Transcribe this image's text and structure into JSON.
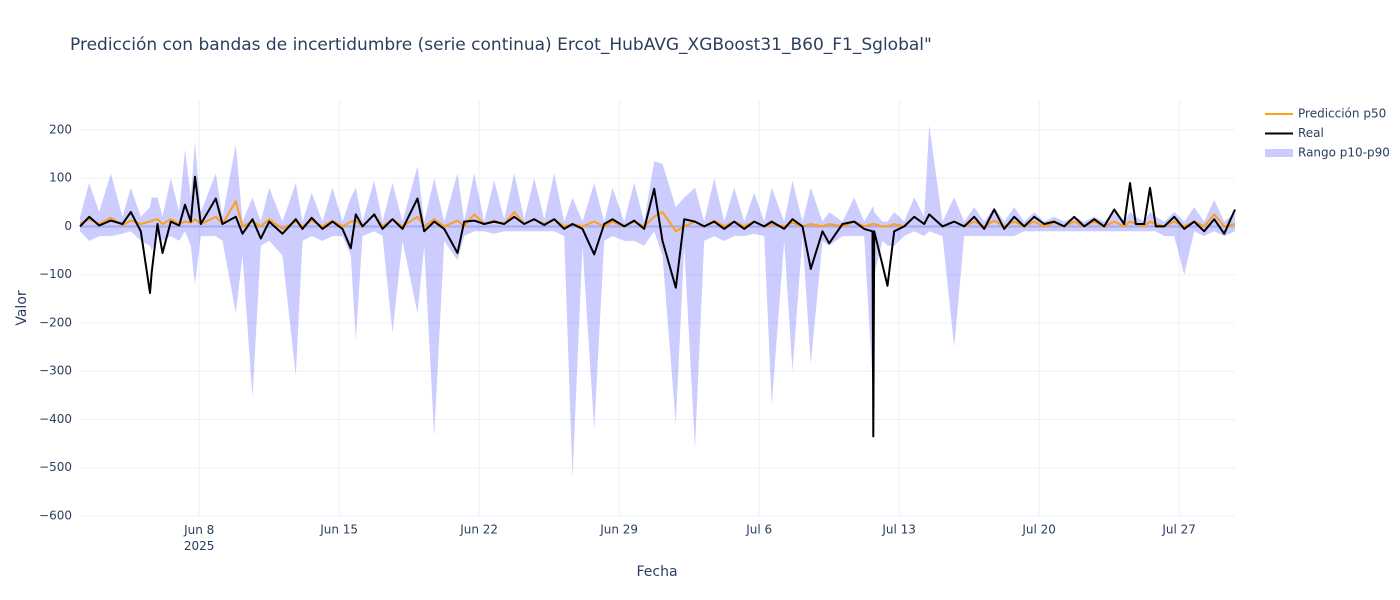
{
  "chart_data": {
    "type": "line",
    "title": "Predicción con bandas de incertidumbre (serie continua) Ercot_HubAVG_XGBoost31_B60_F1_Sglobal\"",
    "x_label": "Fecha",
    "y_label": "Valor",
    "xlim": [
      "2025-06-02T01:00",
      "2025-07-29T19:00"
    ],
    "ylim": [
      -600,
      262
    ],
    "xticks": [
      {
        "value": "2025-06-08T00:00",
        "label": "Jun 8\n2025"
      },
      {
        "value": "2025-06-15T00:00",
        "label": "Jun 15"
      },
      {
        "value": "2025-06-22T00:00",
        "label": "Jun 22"
      },
      {
        "value": "2025-06-29T00:00",
        "label": "Jun 29"
      },
      {
        "value": "2025-07-06T00:00",
        "label": "Jul 6"
      },
      {
        "value": "2025-07-13T00:00",
        "label": "Jul 13"
      },
      {
        "value": "2025-07-20T00:00",
        "label": "Jul 20"
      },
      {
        "value": "2025-07-27T00:00",
        "label": "Jul 27"
      }
    ],
    "yticks": [
      {
        "value": -600,
        "label": "−600"
      },
      {
        "value": -500,
        "label": "−500"
      },
      {
        "value": -400,
        "label": "−400"
      },
      {
        "value": -300,
        "label": "−300"
      },
      {
        "value": -200,
        "label": "−200"
      },
      {
        "value": -100,
        "label": "−100"
      },
      0,
      100,
      200
    ],
    "grid": true,
    "x": [
      "2025-06-02T01:00",
      "2025-06-02T12:00",
      "2025-06-03T00:00",
      "2025-06-03T14:00",
      "2025-06-04T04:00",
      "2025-06-04T14:00",
      "2025-06-05T02:00",
      "2025-06-05T13:00",
      "2025-06-05T15:00",
      "2025-06-05T22:00",
      "2025-06-06T04:00",
      "2025-06-06T14:00",
      "2025-06-07T00:00",
      "2025-06-07T07:00",
      "2025-06-07T14:00",
      "2025-06-07T19:00",
      "2025-06-08T02:00",
      "2025-06-08T20:00",
      "2025-06-09T04:00",
      "2025-06-09T20:00",
      "2025-06-10T04:00",
      "2025-06-10T16:00",
      "2025-06-11T02:00",
      "2025-06-11T12:00",
      "2025-06-12T04:00",
      "2025-06-12T20:00",
      "2025-06-13T04:00",
      "2025-06-13T15:00",
      "2025-06-14T04:00",
      "2025-06-14T16:00",
      "2025-06-15T04:00",
      "2025-06-15T14:00",
      "2025-06-15T20:00",
      "2025-06-16T04:00",
      "2025-06-16T18:00",
      "2025-06-17T04:00",
      "2025-06-17T16:00",
      "2025-06-18T04:00",
      "2025-06-18T22:00",
      "2025-06-19T06:00",
      "2025-06-19T18:00",
      "2025-06-20T06:00",
      "2025-06-20T22:00",
      "2025-06-21T06:00",
      "2025-06-21T18:00",
      "2025-06-22T06:00",
      "2025-06-22T18:00",
      "2025-06-23T06:00",
      "2025-06-23T18:00",
      "2025-06-24T06:00",
      "2025-06-24T18:00",
      "2025-06-25T06:00",
      "2025-06-25T18:00",
      "2025-06-26T06:00",
      "2025-06-26T16:00",
      "2025-06-27T04:00",
      "2025-06-27T18:00",
      "2025-06-28T06:00",
      "2025-06-28T16:00",
      "2025-06-29T06:00",
      "2025-06-29T18:00",
      "2025-06-30T06:00",
      "2025-06-30T18:00",
      "2025-07-01T04:00",
      "2025-07-01T20:00",
      "2025-07-02T06:00",
      "2025-07-02T19:00",
      "2025-07-03T06:00",
      "2025-07-03T18:00",
      "2025-07-04T06:00",
      "2025-07-04T18:00",
      "2025-07-05T06:00",
      "2025-07-05T18:00",
      "2025-07-06T06:00",
      "2025-07-06T15:00",
      "2025-07-07T06:00",
      "2025-07-07T16:00",
      "2025-07-08T04:00",
      "2025-07-08T14:00",
      "2025-07-09T04:00",
      "2025-07-09T12:00",
      "2025-07-10T04:00",
      "2025-07-10T18:00",
      "2025-07-11T06:00",
      "2025-07-11T16:00",
      "2025-07-11T17:00",
      "2025-07-11T18:00",
      "2025-07-12T04:00",
      "2025-07-12T10:00",
      "2025-07-12T18:00",
      "2025-07-13T06:00",
      "2025-07-13T18:00",
      "2025-07-14T06:00",
      "2025-07-14T12:00",
      "2025-07-15T04:00",
      "2025-07-15T18:00",
      "2025-07-16T06:00",
      "2025-07-16T18:00",
      "2025-07-17T06:00",
      "2025-07-17T18:00",
      "2025-07-18T06:00",
      "2025-07-18T18:00",
      "2025-07-19T06:00",
      "2025-07-19T18:00",
      "2025-07-20T06:00",
      "2025-07-20T18:00",
      "2025-07-21T06:00",
      "2025-07-21T18:00",
      "2025-07-22T06:00",
      "2025-07-22T18:00",
      "2025-07-23T06:00",
      "2025-07-23T18:00",
      "2025-07-24T06:00",
      "2025-07-24T13:00",
      "2025-07-24T20:00",
      "2025-07-25T06:00",
      "2025-07-25T13:00",
      "2025-07-25T20:00",
      "2025-07-26T06:00",
      "2025-07-26T18:00",
      "2025-07-27T06:00",
      "2025-07-27T18:00",
      "2025-07-28T06:00",
      "2025-07-28T18:00",
      "2025-07-29T06:00",
      "2025-07-29T19:00"
    ],
    "series": [
      {
        "name": "Predicción p50",
        "color": "#ff9f1a",
        "values": [
          5,
          15,
          5,
          18,
          3,
          12,
          5,
          10,
          12,
          15,
          5,
          15,
          5,
          10,
          8,
          15,
          5,
          20,
          5,
          52,
          0,
          10,
          0,
          15,
          -5,
          10,
          0,
          12,
          0,
          12,
          0,
          10,
          12,
          0,
          25,
          0,
          15,
          0,
          20,
          0,
          15,
          0,
          12,
          0,
          25,
          5,
          12,
          5,
          30,
          5,
          15,
          5,
          15,
          0,
          5,
          0,
          10,
          0,
          10,
          0,
          10,
          0,
          20,
          30,
          -10,
          0,
          10,
          0,
          12,
          0,
          10,
          0,
          10,
          0,
          5,
          0,
          8,
          0,
          5,
          0,
          5,
          0,
          10,
          0,
          5,
          5,
          5,
          0,
          0,
          5,
          0,
          20,
          5,
          25,
          0,
          10,
          0,
          10,
          0,
          12,
          0,
          10,
          0,
          10,
          0,
          8,
          0,
          10,
          0,
          10,
          0,
          10,
          0,
          10,
          5,
          0,
          10,
          5,
          0,
          10,
          0,
          10,
          0,
          25,
          0,
          5
        ]
      },
      {
        "name": "Real",
        "color": "#000000",
        "values": [
          0,
          20,
          2,
          12,
          5,
          30,
          -10,
          -138,
          -95,
          5,
          -55,
          10,
          2,
          45,
          10,
          103,
          5,
          58,
          5,
          20,
          -15,
          15,
          -25,
          10,
          -15,
          15,
          -5,
          18,
          -5,
          10,
          -5,
          -45,
          25,
          0,
          25,
          -5,
          15,
          -5,
          58,
          -10,
          10,
          -5,
          -55,
          10,
          12,
          5,
          10,
          5,
          20,
          5,
          15,
          3,
          15,
          -5,
          5,
          -5,
          -58,
          5,
          15,
          0,
          12,
          -5,
          78,
          -30,
          -127,
          15,
          10,
          0,
          10,
          -5,
          10,
          -5,
          10,
          0,
          10,
          -5,
          15,
          0,
          -88,
          -10,
          -35,
          5,
          10,
          -5,
          -10,
          -435,
          -10,
          -80,
          -123,
          -10,
          0,
          20,
          5,
          25,
          0,
          10,
          0,
          20,
          -5,
          35,
          -5,
          20,
          0,
          20,
          5,
          10,
          0,
          20,
          0,
          15,
          0,
          35,
          5,
          90,
          5,
          5,
          80,
          0,
          0,
          20,
          -5,
          10,
          -10,
          15,
          -15,
          35
        ]
      },
      {
        "name": "Rango p10-p90",
        "type": "band",
        "color": "rgba(0,0,255,0.2)",
        "lower": [
          -10,
          -30,
          -20,
          -20,
          -15,
          -10,
          -30,
          -40,
          -50,
          -20,
          -30,
          -20,
          -30,
          -10,
          -40,
          -120,
          -20,
          -20,
          -30,
          -180,
          -60,
          -355,
          -40,
          -30,
          -60,
          -310,
          -30,
          -20,
          -30,
          -20,
          -20,
          -60,
          -235,
          -20,
          -10,
          -20,
          -220,
          -30,
          -180,
          -40,
          -435,
          -30,
          -70,
          -20,
          -10,
          -10,
          -15,
          -10,
          -10,
          -10,
          -10,
          -10,
          -10,
          -20,
          -520,
          -40,
          -420,
          -30,
          -20,
          -30,
          -30,
          -40,
          -10,
          -60,
          -410,
          -40,
          -460,
          -30,
          -20,
          -30,
          -20,
          -20,
          -15,
          -20,
          -370,
          -30,
          -300,
          -20,
          -285,
          -30,
          -40,
          -20,
          -20,
          -20,
          -320,
          -320,
          -100,
          -30,
          -40,
          -40,
          -20,
          -10,
          -20,
          -10,
          -20,
          -250,
          -20,
          -20,
          -20,
          -20,
          -20,
          -20,
          -10,
          -10,
          -10,
          -10,
          -10,
          -10,
          -10,
          -10,
          -10,
          -10,
          -10,
          -10,
          -10,
          -10,
          -10,
          -10,
          -20,
          -20,
          -100,
          -10,
          -20,
          -10,
          -20,
          -10
        ],
        "upper": [
          20,
          90,
          30,
          110,
          20,
          80,
          20,
          40,
          60,
          60,
          20,
          100,
          30,
          160,
          60,
          175,
          30,
          110,
          20,
          170,
          10,
          60,
          10,
          80,
          10,
          90,
          10,
          70,
          10,
          80,
          10,
          60,
          80,
          10,
          95,
          10,
          90,
          10,
          125,
          10,
          100,
          10,
          110,
          10,
          110,
          10,
          95,
          15,
          110,
          15,
          100,
          15,
          110,
          10,
          60,
          10,
          90,
          10,
          80,
          10,
          90,
          10,
          135,
          130,
          40,
          60,
          80,
          10,
          100,
          10,
          80,
          10,
          70,
          10,
          80,
          10,
          95,
          10,
          80,
          10,
          30,
          10,
          60,
          10,
          40,
          40,
          30,
          10,
          10,
          30,
          10,
          60,
          20,
          210,
          10,
          60,
          10,
          40,
          10,
          40,
          10,
          40,
          10,
          30,
          10,
          20,
          10,
          20,
          10,
          20,
          10,
          30,
          10,
          30,
          20,
          10,
          30,
          20,
          10,
          30,
          10,
          40,
          10,
          55,
          10,
          30
        ]
      }
    ]
  }
}
